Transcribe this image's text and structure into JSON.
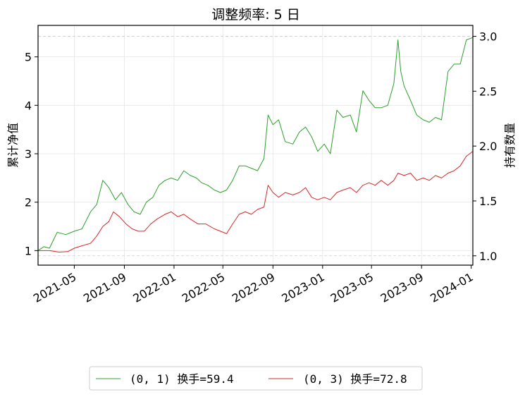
{
  "chart_data": {
    "type": "line",
    "title": "调整频率: 5 日",
    "ylabel": "累计净值",
    "ylabel_right": "持有数量",
    "x_start": "2021-02-01",
    "x_end": "2024-01-05",
    "ylim": [
      0.7,
      5.65
    ],
    "ylim_right": [
      0.915,
      3.1
    ],
    "xticks": [
      {
        "date": "2021-05-01",
        "label": "2021-05"
      },
      {
        "date": "2021-09-01",
        "label": "2021-09"
      },
      {
        "date": "2022-01-01",
        "label": "2022-01"
      },
      {
        "date": "2022-05-01",
        "label": "2022-05"
      },
      {
        "date": "2022-09-01",
        "label": "2022-09"
      },
      {
        "date": "2023-01-01",
        "label": "2023-01"
      },
      {
        "date": "2023-05-01",
        "label": "2023-05"
      },
      {
        "date": "2023-09-01",
        "label": "2023-09"
      },
      {
        "date": "2024-01-01",
        "label": "2024-01"
      }
    ],
    "yticks_left": [
      1,
      2,
      3,
      4,
      5
    ],
    "yticks_right": [
      "1.0",
      "1.5",
      "2.0",
      "2.5",
      "3.0"
    ],
    "right_axis_hlines": [
      1.0,
      3.0
    ],
    "grid": true,
    "legend_position": "bottom-center",
    "series": [
      {
        "name": "(0, 1) 换手=59.4",
        "color": "#2ca02c",
        "points": [
          [
            "2021-02-01",
            1.0
          ],
          [
            "2021-02-15",
            1.08
          ],
          [
            "2021-03-01",
            1.05
          ],
          [
            "2021-03-20",
            1.38
          ],
          [
            "2021-04-10",
            1.33
          ],
          [
            "2021-05-01",
            1.4
          ],
          [
            "2021-05-20",
            1.45
          ],
          [
            "2021-06-10",
            1.8
          ],
          [
            "2021-06-25",
            1.95
          ],
          [
            "2021-07-10",
            2.45
          ],
          [
            "2021-07-25",
            2.3
          ],
          [
            "2021-08-10",
            2.05
          ],
          [
            "2021-08-25",
            2.2
          ],
          [
            "2021-09-10",
            1.95
          ],
          [
            "2021-09-25",
            1.8
          ],
          [
            "2021-10-10",
            1.75
          ],
          [
            "2021-10-25",
            2.0
          ],
          [
            "2021-11-10",
            2.1
          ],
          [
            "2021-11-25",
            2.35
          ],
          [
            "2021-12-10",
            2.45
          ],
          [
            "2021-12-25",
            2.5
          ],
          [
            "2022-01-10",
            2.45
          ],
          [
            "2022-01-25",
            2.65
          ],
          [
            "2022-02-10",
            2.55
          ],
          [
            "2022-02-25",
            2.5
          ],
          [
            "2022-03-10",
            2.4
          ],
          [
            "2022-03-25",
            2.35
          ],
          [
            "2022-04-10",
            2.25
          ],
          [
            "2022-04-25",
            2.2
          ],
          [
            "2022-05-10",
            2.25
          ],
          [
            "2022-05-25",
            2.45
          ],
          [
            "2022-06-10",
            2.75
          ],
          [
            "2022-06-25",
            2.75
          ],
          [
            "2022-07-10",
            2.7
          ],
          [
            "2022-07-25",
            2.65
          ],
          [
            "2022-08-10",
            2.9
          ],
          [
            "2022-08-20",
            3.8
          ],
          [
            "2022-09-01",
            3.6
          ],
          [
            "2022-09-15",
            3.7
          ],
          [
            "2022-10-01",
            3.25
          ],
          [
            "2022-10-20",
            3.2
          ],
          [
            "2022-11-05",
            3.45
          ],
          [
            "2022-11-20",
            3.55
          ],
          [
            "2022-12-05",
            3.35
          ],
          [
            "2022-12-20",
            3.05
          ],
          [
            "2023-01-05",
            3.2
          ],
          [
            "2023-01-20",
            3.0
          ],
          [
            "2023-02-05",
            3.9
          ],
          [
            "2023-02-20",
            3.75
          ],
          [
            "2023-03-10",
            3.8
          ],
          [
            "2023-03-25",
            3.45
          ],
          [
            "2023-04-10",
            4.3
          ],
          [
            "2023-04-25",
            4.1
          ],
          [
            "2023-05-10",
            3.95
          ],
          [
            "2023-05-25",
            3.95
          ],
          [
            "2023-06-10",
            4.0
          ],
          [
            "2023-06-25",
            4.45
          ],
          [
            "2023-07-05",
            5.35
          ],
          [
            "2023-07-12",
            4.7
          ],
          [
            "2023-07-20",
            4.4
          ],
          [
            "2023-08-05",
            4.1
          ],
          [
            "2023-08-20",
            3.8
          ],
          [
            "2023-09-05",
            3.7
          ],
          [
            "2023-09-20",
            3.65
          ],
          [
            "2023-10-05",
            3.75
          ],
          [
            "2023-10-20",
            3.7
          ],
          [
            "2023-11-05",
            4.7
          ],
          [
            "2023-11-20",
            4.85
          ],
          [
            "2023-12-05",
            4.85
          ],
          [
            "2023-12-20",
            5.35
          ],
          [
            "2024-01-05",
            5.4
          ]
        ]
      },
      {
        "name": "(0, 3) 换手=72.8",
        "color": "#d62728",
        "points": [
          [
            "2021-02-01",
            1.0
          ],
          [
            "2021-03-01",
            1.0
          ],
          [
            "2021-03-25",
            0.97
          ],
          [
            "2021-04-15",
            0.98
          ],
          [
            "2021-05-01",
            1.05
          ],
          [
            "2021-05-20",
            1.1
          ],
          [
            "2021-06-10",
            1.15
          ],
          [
            "2021-06-25",
            1.3
          ],
          [
            "2021-07-10",
            1.5
          ],
          [
            "2021-07-25",
            1.6
          ],
          [
            "2021-08-05",
            1.8
          ],
          [
            "2021-08-20",
            1.7
          ],
          [
            "2021-09-05",
            1.55
          ],
          [
            "2021-09-20",
            1.45
          ],
          [
            "2021-10-05",
            1.4
          ],
          [
            "2021-10-20",
            1.4
          ],
          [
            "2021-11-05",
            1.55
          ],
          [
            "2021-11-20",
            1.65
          ],
          [
            "2021-12-10",
            1.75
          ],
          [
            "2021-12-25",
            1.8
          ],
          [
            "2022-01-10",
            1.7
          ],
          [
            "2022-01-25",
            1.75
          ],
          [
            "2022-02-10",
            1.65
          ],
          [
            "2022-03-01",
            1.55
          ],
          [
            "2022-03-20",
            1.55
          ],
          [
            "2022-04-10",
            1.45
          ],
          [
            "2022-04-25",
            1.4
          ],
          [
            "2022-05-10",
            1.35
          ],
          [
            "2022-05-25",
            1.55
          ],
          [
            "2022-06-10",
            1.75
          ],
          [
            "2022-06-25",
            1.8
          ],
          [
            "2022-07-10",
            1.75
          ],
          [
            "2022-07-25",
            1.85
          ],
          [
            "2022-08-10",
            1.9
          ],
          [
            "2022-08-20",
            2.35
          ],
          [
            "2022-09-01",
            2.2
          ],
          [
            "2022-09-15",
            2.1
          ],
          [
            "2022-10-01",
            2.2
          ],
          [
            "2022-10-20",
            2.15
          ],
          [
            "2022-11-05",
            2.2
          ],
          [
            "2022-11-20",
            2.3
          ],
          [
            "2022-12-05",
            2.1
          ],
          [
            "2022-12-20",
            2.05
          ],
          [
            "2023-01-05",
            2.1
          ],
          [
            "2023-01-20",
            2.05
          ],
          [
            "2023-02-05",
            2.2
          ],
          [
            "2023-02-20",
            2.25
          ],
          [
            "2023-03-10",
            2.3
          ],
          [
            "2023-03-25",
            2.2
          ],
          [
            "2023-04-10",
            2.35
          ],
          [
            "2023-04-25",
            2.4
          ],
          [
            "2023-05-10",
            2.35
          ],
          [
            "2023-05-25",
            2.45
          ],
          [
            "2023-06-10",
            2.35
          ],
          [
            "2023-06-25",
            2.45
          ],
          [
            "2023-07-05",
            2.6
          ],
          [
            "2023-07-20",
            2.55
          ],
          [
            "2023-08-05",
            2.6
          ],
          [
            "2023-08-20",
            2.45
          ],
          [
            "2023-09-05",
            2.5
          ],
          [
            "2023-09-20",
            2.45
          ],
          [
            "2023-10-05",
            2.55
          ],
          [
            "2023-10-20",
            2.5
          ],
          [
            "2023-11-05",
            2.6
          ],
          [
            "2023-11-20",
            2.65
          ],
          [
            "2023-12-05",
            2.75
          ],
          [
            "2023-12-20",
            2.95
          ],
          [
            "2024-01-05",
            3.05
          ]
        ]
      }
    ]
  }
}
